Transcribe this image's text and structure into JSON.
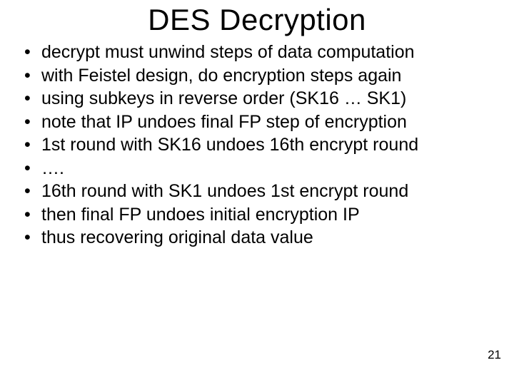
{
  "slide": {
    "title": "DES Decryption",
    "title_fontsize": 42,
    "body_fontsize": 25,
    "background_color": "#ffffff",
    "text_color": "#000000",
    "font_family": "Comic Sans MS",
    "bullets": [
      "decrypt must unwind steps of data computation",
      "with Feistel design, do encryption steps again",
      "using subkeys in reverse order (SK16 … SK1)",
      "note that IP undoes final FP step of encryption",
      "1st round with SK16 undoes 16th encrypt round",
      "….",
      "16th round with SK1 undoes 1st encrypt round",
      "then final FP undoes initial encryption IP",
      "thus recovering original data value"
    ],
    "page_number": "21"
  }
}
